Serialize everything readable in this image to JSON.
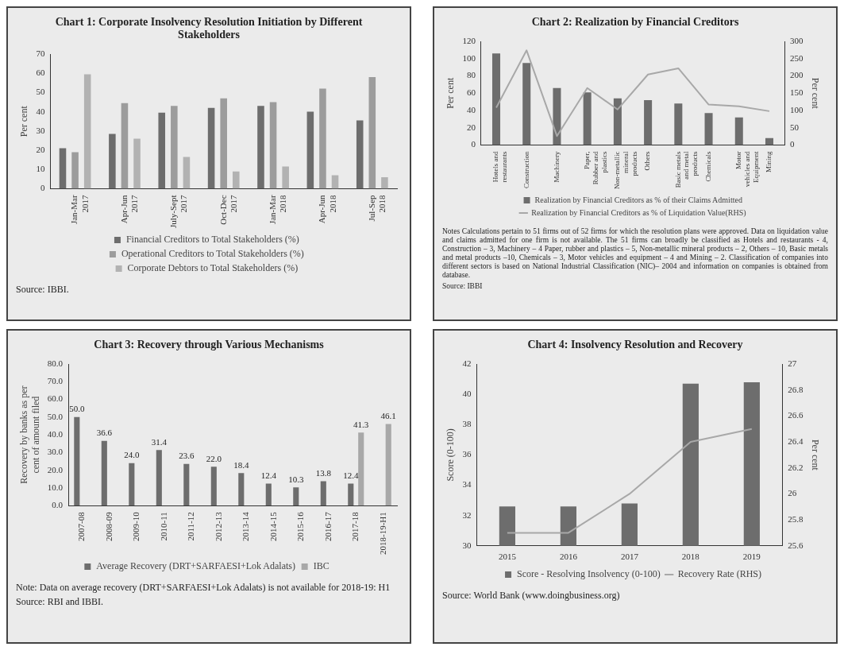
{
  "chart_data": [
    {
      "type": "bar",
      "title": "Chart 1: Corporate Insolvency Resolution Initiation by Different Stakeholders",
      "ylabel": "Per cent",
      "categories": [
        "Jan-Mar 2017",
        "Apr-Jun 2017",
        "July-Sept 2017",
        "Oct-Dec 2017",
        "Jan-Mar 2018",
        "Apr-Jun 2018",
        "Jul-Sep 2018"
      ],
      "series": [
        {
          "name": "Financial Creditors to Total Stakeholders (%)",
          "color": "#6d6d6d",
          "values": [
            21,
            28.5,
            39.5,
            42,
            43,
            40,
            35.5
          ]
        },
        {
          "name": "Operational Creditors to Total Stakeholders (%)",
          "color": "#9c9c9c",
          "values": [
            19,
            44.5,
            43,
            47,
            45,
            52,
            58
          ]
        },
        {
          "name": "Corporate Debtors to Total Stakeholders (%)",
          "color": "#b2b2b2",
          "values": [
            59.5,
            26,
            16.5,
            9,
            11.5,
            7,
            6
          ]
        }
      ],
      "ylim": [
        0,
        70
      ],
      "yticks": [
        0,
        10,
        20,
        30,
        40,
        50,
        60,
        70
      ],
      "legend": "bottom",
      "annotations": [
        "Source: IBBI."
      ]
    },
    {
      "type": "bar",
      "title": "Chart 2: Realization by Financial Creditors",
      "ylabel": "Per cent",
      "y2label": "Per cent",
      "categories": [
        "Hotels and restaurants",
        "Construction",
        "Machinery",
        "Paper, Rubber and plastics",
        "Non-metallic mineral products",
        "Others",
        "Basic metals and metal products",
        "Chemicals",
        "Motor vehicles and Equipment",
        "Mining"
      ],
      "series": [
        {
          "name": "Realization by Financial Creditors as % of their Claims Admitted",
          "color": "#6d6d6d",
          "values": [
            106,
            95,
            66,
            61,
            54,
            52,
            48,
            37,
            32,
            8
          ]
        },
        {
          "name": "Realization by Financial Creditors as % of Liquidation Value(RHS)",
          "type": "line",
          "axis": "y2",
          "color": "#a8a8a8",
          "values": [
            108,
            274,
            26,
            165,
            103,
            204,
            222,
            117,
            112,
            98
          ]
        }
      ],
      "ylim": [
        0,
        120
      ],
      "yticks": [
        0,
        20,
        40,
        60,
        80,
        100,
        120
      ],
      "y2lim": [
        0,
        300
      ],
      "y2ticks": [
        0,
        50,
        100,
        150,
        200,
        250,
        300
      ],
      "legend": "bottom",
      "marker": "none",
      "annotations": [
        "Notes Calculations pertain to 51 firms out of 52 firms for which the resolution plans were approved. Data on liquidation value and claims admitted for one firm is not available. The 51 firms can broadly be classified as Hotels and restaurants - 4, Construction – 3, Machinery – 4 Paper, rubber and plastics – 5, Non-metallic mineral products – 2, Others – 10, Basic metals and metal products –10, Chemicals – 3, Motor vehicles and equipment – 4 and Mining – 2. Classification of companies into different sectors is based on National Industrial Classification (NIC)– 2004 and information on companies is obtained from database.",
        "Source: IBBI"
      ]
    },
    {
      "type": "bar",
      "title": "Chart 3: Recovery through Various Mechanisms",
      "ylabel": "Recovery by banks as per cent of amount filed",
      "categories": [
        "2007-08",
        "2008-09",
        "2009-10",
        "2010-11",
        "2011-12",
        "2012-13",
        "2013-14",
        "2014-15",
        "2015-16",
        "2016-17",
        "2017-18",
        "2018-19-H1"
      ],
      "series": [
        {
          "name": "Average Recovery (DRT+SARFAESI+Lok Adalats)",
          "color": "#6d6d6d",
          "values": [
            50,
            36.6,
            24,
            31.4,
            23.6,
            22,
            18.4,
            12.4,
            10.3,
            13.8,
            12.4,
            null
          ],
          "value_labels": [
            "50.0",
            "36.6",
            "24.0",
            "31.4",
            "23.6",
            "22.0",
            "18.4",
            "12.4",
            "10.3",
            "13.8",
            "12.4",
            null
          ]
        },
        {
          "name": "IBC",
          "color": "#a8a8a8",
          "values": [
            null,
            null,
            null,
            null,
            null,
            null,
            null,
            null,
            null,
            null,
            41.3,
            46.1
          ],
          "value_labels": [
            null,
            null,
            null,
            null,
            null,
            null,
            null,
            null,
            null,
            null,
            "41.3",
            "46.1"
          ]
        }
      ],
      "ylim": [
        0,
        80
      ],
      "yticks": [
        {
          "value": 0,
          "label": "0.0"
        },
        {
          "value": 10,
          "label": "10.0"
        },
        {
          "value": 20,
          "label": "20.0"
        },
        {
          "value": 30,
          "label": "30.0"
        },
        {
          "value": 40,
          "label": "40.0"
        },
        {
          "value": 50,
          "label": "50.0"
        },
        {
          "value": 60,
          "label": "60.0"
        },
        {
          "value": 70,
          "label": "70.0"
        },
        {
          "value": 80,
          "label": "80.0"
        }
      ],
      "legend": "bottom",
      "annotations": [
        "Note: Data on average recovery (DRT+SARFAESI+Lok Adalats) is not available for 2018-19: H1",
        "Source: RBI and IBBI."
      ]
    },
    {
      "type": "bar",
      "title": "Chart 4: Insolvency Resolution and Recovery",
      "ylabel": "Score (0-100)",
      "y2label": "Per cent",
      "categories": [
        "2015",
        "2016",
        "2017",
        "2018",
        "2019"
      ],
      "series": [
        {
          "name": "Score - Resolving Insolvency (0-100)",
          "color": "#6d6d6d",
          "values": [
            32.6,
            32.6,
            32.8,
            40.7,
            40.8
          ]
        },
        {
          "name": "Recovery Rate (RHS)",
          "type": "line",
          "axis": "y2",
          "color": "#a8a8a8",
          "values": [
            25.7,
            25.7,
            26.0,
            26.4,
            26.5
          ]
        }
      ],
      "ylim": [
        30,
        42
      ],
      "yticks": [
        30,
        32,
        34,
        36,
        38,
        40,
        42
      ],
      "y2lim": [
        25.6,
        27
      ],
      "y2ticks": [
        25.6,
        25.8,
        26,
        26.2,
        26.4,
        26.6,
        26.8,
        27
      ],
      "legend": "bottom",
      "marker": "none",
      "annotations": [
        "Source: World Bank (www.doingbusiness.org)"
      ]
    }
  ]
}
